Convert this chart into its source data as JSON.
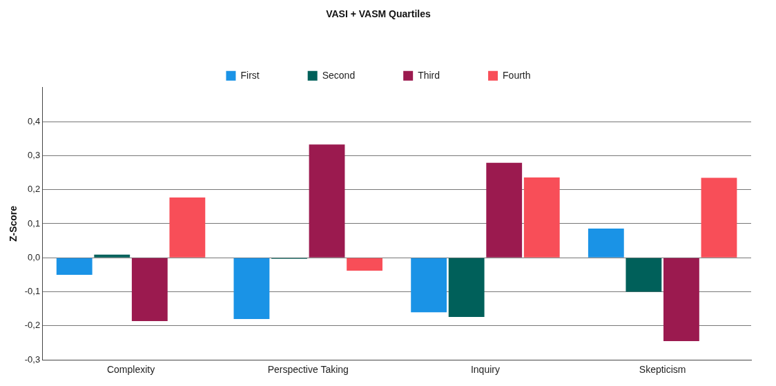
{
  "chart_data": {
    "type": "bar",
    "legend_title": "VASI + VASM Quartiles",
    "ylabel": "Z-Score",
    "categories": [
      "Complexity",
      "Perspective Taking",
      "Inquiry",
      "Skepticism"
    ],
    "series": [
      {
        "name": "First",
        "color": "#1a93e6",
        "values": [
          -0.05,
          -0.18,
          -0.16,
          0.086
        ]
      },
      {
        "name": "Second",
        "color": "#00605a",
        "values": [
          0.009,
          -0.003,
          -0.174,
          -0.1
        ]
      },
      {
        "name": "Third",
        "color": "#9b1a4f",
        "values": [
          -0.186,
          0.333,
          0.279,
          -0.245
        ]
      },
      {
        "name": "Fourth",
        "color": "#f84e58",
        "values": [
          0.177,
          -0.038,
          0.236,
          0.235
        ]
      }
    ],
    "ylim": [
      -0.3,
      0.5
    ],
    "yticks": [
      {
        "value": -0.3,
        "label": "-0,3"
      },
      {
        "value": -0.2,
        "label": "-0,2"
      },
      {
        "value": -0.1,
        "label": "-0,1"
      },
      {
        "value": 0,
        "label": "0,0"
      },
      {
        "value": 0.1,
        "label": "0,1"
      },
      {
        "value": 0.2,
        "label": "0,2"
      },
      {
        "value": 0.3,
        "label": "0,3"
      },
      {
        "value": 0.4,
        "label": "0,4"
      }
    ],
    "grid": "y",
    "legend": "top"
  }
}
